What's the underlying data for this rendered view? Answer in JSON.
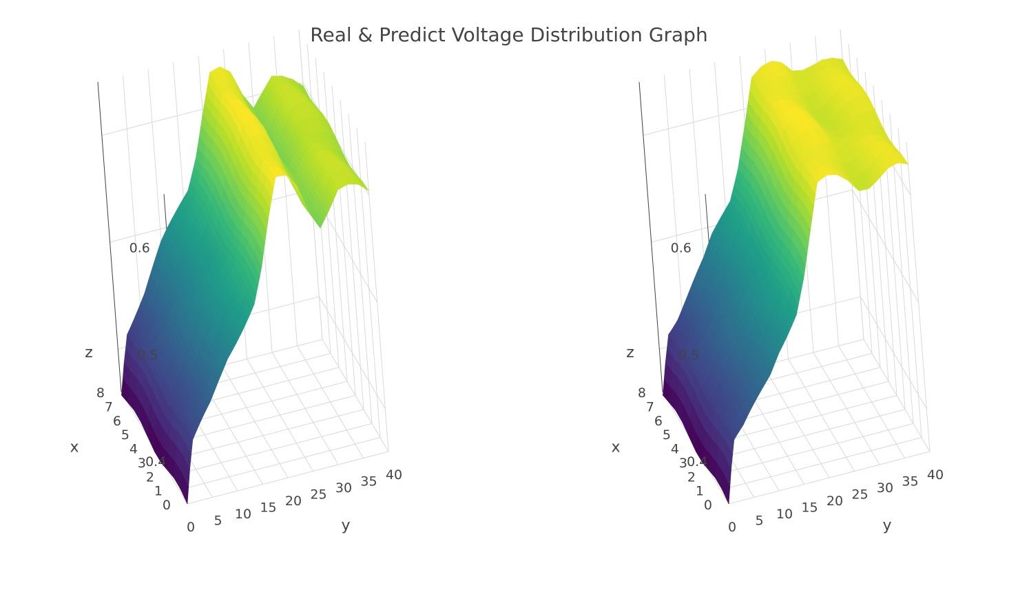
{
  "title": "Real & Predict Voltage Distribution Graph",
  "colors": {
    "colorscale": "viridis",
    "grid": "#d9d9d9",
    "text": "#444444"
  },
  "chart_data": [
    {
      "type": "surface",
      "panel": "left",
      "xlabel": "x",
      "ylabel": "y",
      "zlabel": "z",
      "x_ticks": [
        0,
        1,
        2,
        3,
        4,
        5,
        6,
        7,
        8
      ],
      "y_ticks": [
        0,
        5,
        10,
        15,
        20,
        25,
        30,
        35,
        40
      ],
      "z_ticks": [
        0.4,
        0.5,
        0.6
      ],
      "x_range": [
        0,
        8
      ],
      "y_range": [
        0,
        40
      ],
      "z_range": [
        0.36,
        0.65
      ],
      "grid": true,
      "profile_y": [
        0,
        1,
        2,
        4,
        6,
        8,
        10,
        12,
        14,
        16,
        18,
        20,
        22,
        24,
        26,
        28,
        30,
        32,
        34,
        36,
        38,
        40
      ],
      "profile_z": [
        0.36,
        0.39,
        0.415,
        0.43,
        0.445,
        0.465,
        0.485,
        0.5,
        0.515,
        0.53,
        0.56,
        0.6,
        0.635,
        0.635,
        0.625,
        0.6,
        0.585,
        0.6,
        0.615,
        0.615,
        0.61,
        0.6
      ]
    },
    {
      "type": "surface",
      "panel": "right",
      "xlabel": "x",
      "ylabel": "y",
      "zlabel": "z",
      "x_ticks": [
        0,
        1,
        2,
        3,
        4,
        5,
        6,
        7,
        8
      ],
      "y_ticks": [
        0,
        5,
        10,
        15,
        20,
        25,
        30,
        35,
        40
      ],
      "z_ticks": [
        0.4,
        0.5,
        0.6
      ],
      "x_range": [
        0,
        8
      ],
      "y_range": [
        0,
        40
      ],
      "z_range": [
        0.36,
        0.65
      ],
      "grid": true,
      "profile_y": [
        0,
        1,
        2,
        4,
        6,
        8,
        10,
        12,
        14,
        16,
        18,
        20,
        22,
        24,
        26,
        28,
        30,
        32,
        34,
        36,
        38,
        40
      ],
      "profile_z": [
        0.36,
        0.39,
        0.415,
        0.425,
        0.44,
        0.455,
        0.47,
        0.49,
        0.505,
        0.52,
        0.55,
        0.59,
        0.63,
        0.635,
        0.635,
        0.63,
        0.62,
        0.62,
        0.625,
        0.63,
        0.63,
        0.625
      ]
    }
  ]
}
